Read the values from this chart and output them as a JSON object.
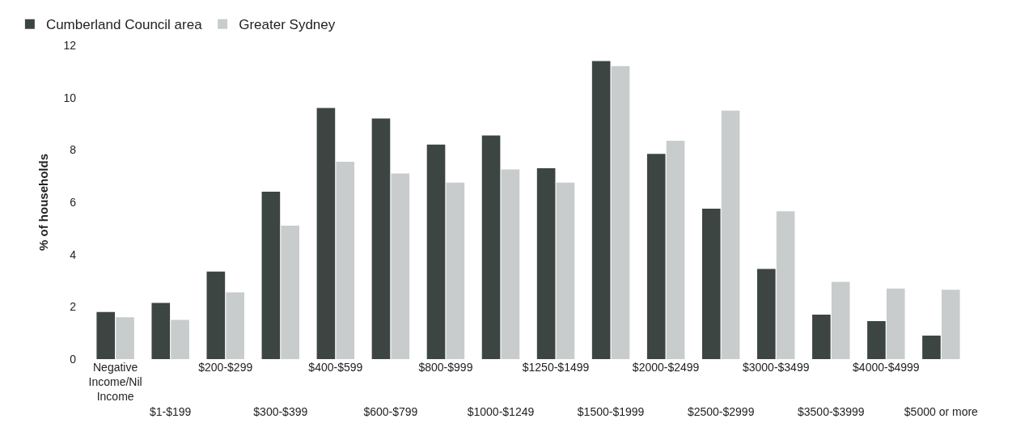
{
  "chart_data": {
    "type": "bar",
    "ylabel": "% of households",
    "categories": [
      "Negative Income/Nil Income",
      "$1-$199",
      "$200-$299",
      "$300-$399",
      "$400-$599",
      "$600-$799",
      "$800-$999",
      "$1000-$1249",
      "$1250-$1499",
      "$1500-$1999",
      "$2000-$2499",
      "$2500-$2999",
      "$3000-$3499",
      "$3500-$3999",
      "$4000-$4999",
      "$5000 or more"
    ],
    "series": [
      {
        "name": "Cumberland Council area",
        "color": "#3d4543",
        "values": [
          1.8,
          2.15,
          3.35,
          6.4,
          9.6,
          9.2,
          8.2,
          8.55,
          7.3,
          11.4,
          7.85,
          5.75,
          3.45,
          1.7,
          1.45,
          0.9
        ]
      },
      {
        "name": "Greater Sydney",
        "color": "#c8cccc",
        "values": [
          1.6,
          1.5,
          2.55,
          5.1,
          7.55,
          7.1,
          6.75,
          7.25,
          6.75,
          11.2,
          8.35,
          9.5,
          5.65,
          2.95,
          2.7,
          2.65
        ]
      }
    ],
    "ylim": [
      0,
      12
    ],
    "yticks": [
      0,
      2,
      4,
      6,
      8,
      10,
      12
    ],
    "legend": "top left"
  }
}
